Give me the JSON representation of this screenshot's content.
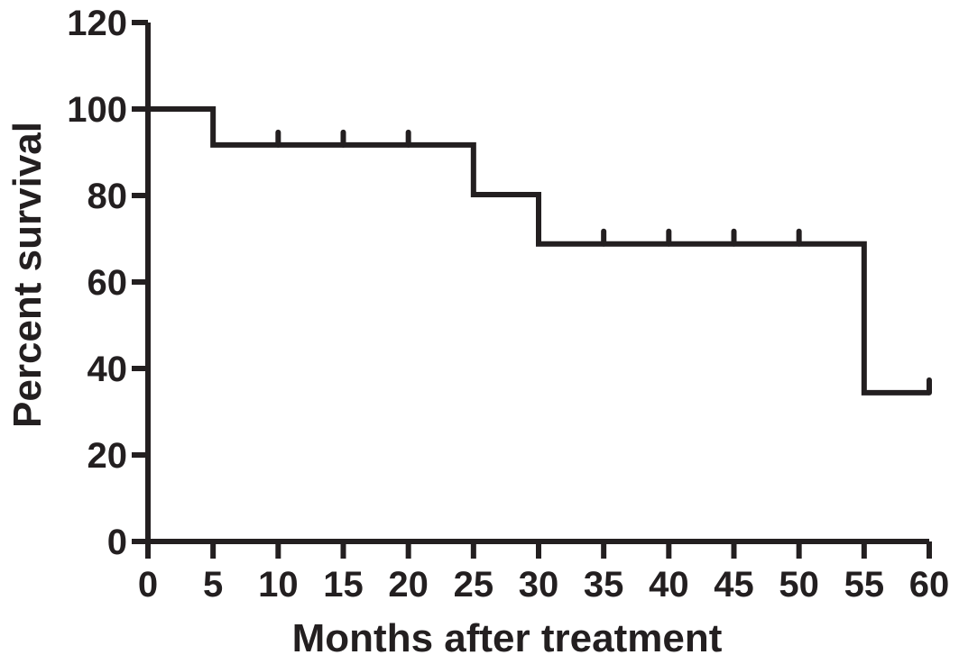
{
  "figure": {
    "background": "#ffffff",
    "ink_color": "#231f20"
  },
  "chart_data": {
    "type": "line",
    "subtype": "kaplan_meier_step",
    "title": "",
    "xlabel": "Months after treatment",
    "ylabel": "Percent survival",
    "xlim": [
      0,
      60
    ],
    "ylim": [
      0,
      120
    ],
    "xticks": [
      0,
      5,
      10,
      15,
      20,
      25,
      30,
      35,
      40,
      45,
      50,
      55,
      60
    ],
    "yticks": [
      0,
      20,
      40,
      60,
      80,
      100,
      120
    ],
    "grid": false,
    "legend_position": "none",
    "series": [
      {
        "name": "percent-survival",
        "color": "#231f20",
        "step_points": [
          [
            0,
            100
          ],
          [
            5,
            100
          ],
          [
            5,
            91.7
          ],
          [
            25,
            91.7
          ],
          [
            25,
            80.2
          ],
          [
            30,
            80.2
          ],
          [
            30,
            68.8
          ],
          [
            55,
            68.8
          ],
          [
            55,
            34.4
          ],
          [
            60,
            34.4
          ]
        ],
        "censor_marks": [
          [
            10,
            91.7
          ],
          [
            15,
            91.7
          ],
          [
            20,
            91.7
          ],
          [
            35,
            68.8
          ],
          [
            40,
            68.8
          ],
          [
            45,
            68.8
          ],
          [
            50,
            68.8
          ],
          [
            60,
            34.4
          ]
        ]
      }
    ]
  }
}
